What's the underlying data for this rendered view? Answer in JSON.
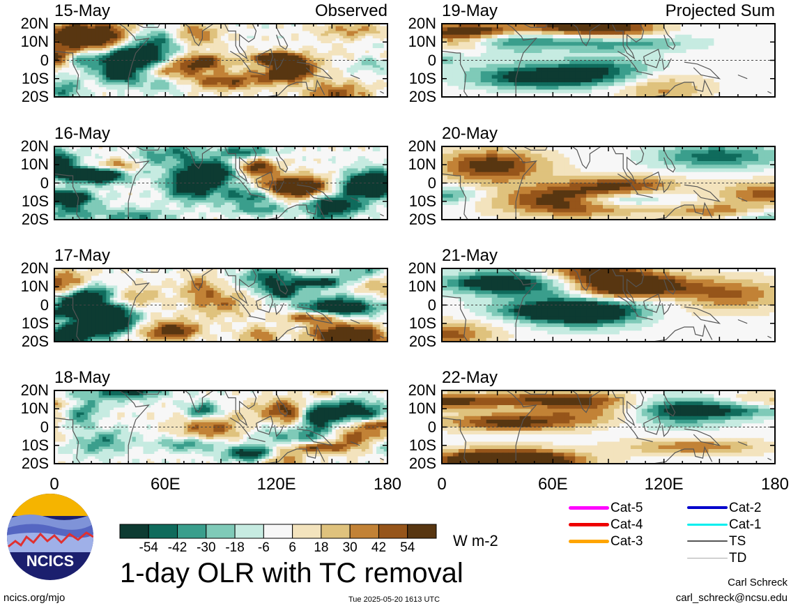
{
  "chart_data": {
    "type": "heatmap",
    "title": "1-day OLR with TC removal",
    "panel_labels": {
      "observed": "Observed",
      "projected": "Projected Sum"
    },
    "panels": [
      {
        "date": "15-May",
        "column": "observed"
      },
      {
        "date": "16-May",
        "column": "observed"
      },
      {
        "date": "17-May",
        "column": "observed"
      },
      {
        "date": "18-May",
        "column": "observed"
      },
      {
        "date": "19-May",
        "column": "projected"
      },
      {
        "date": "20-May",
        "column": "projected"
      },
      {
        "date": "21-May",
        "column": "projected"
      },
      {
        "date": "22-May",
        "column": "projected"
      }
    ],
    "x_range": [
      0,
      180
    ],
    "y_range": [
      -20,
      20
    ],
    "x_ticks": [
      {
        "value": 0,
        "label": "0"
      },
      {
        "value": 60,
        "label": "60E"
      },
      {
        "value": 120,
        "label": "120E"
      },
      {
        "value": 180,
        "label": "180"
      }
    ],
    "y_ticks": [
      {
        "value": 20,
        "label": "20N"
      },
      {
        "value": 10,
        "label": "10N"
      },
      {
        "value": 0,
        "label": "0"
      },
      {
        "value": -10,
        "label": "10S"
      },
      {
        "value": -20,
        "label": "20S"
      }
    ],
    "colorbar": {
      "ticks": [
        -54,
        -42,
        -30,
        -18,
        -6,
        6,
        18,
        30,
        42,
        54
      ],
      "colors": [
        "#0d3b32",
        "#0f6b5c",
        "#3a9e8c",
        "#7fcab8",
        "#c6ebe1",
        "#f7f7f7",
        "#f3e3bd",
        "#dfc27d",
        "#c28236",
        "#96551a",
        "#583611"
      ],
      "units": "W m-2"
    },
    "legend": [
      {
        "label": "Cat-5",
        "color": "#ff00ff",
        "width": 5
      },
      {
        "label": "Cat-4",
        "color": "#ee0000",
        "width": 5
      },
      {
        "label": "Cat-3",
        "color": "#ffa500",
        "width": 5
      },
      {
        "label": "Cat-2",
        "color": "#0000cc",
        "width": 4
      },
      {
        "label": "Cat-1",
        "color": "#00eeee",
        "width": 3
      },
      {
        "label": "TS",
        "color": "#555555",
        "width": 2
      },
      {
        "label": "TD",
        "color": "#aaaaaa",
        "width": 1
      }
    ]
  },
  "footer": {
    "site": "ncics.org/mjo",
    "timestamp": "Tue 2025-05-20 1613 UTC",
    "author": "Carl Schreck",
    "email": "carl_schreck@ncsu.edu"
  },
  "logo": {
    "text": "NCICS",
    "colors": {
      "bg": "#1b1f6e",
      "sun": "#f5b400",
      "ridge": "#e03030"
    }
  }
}
